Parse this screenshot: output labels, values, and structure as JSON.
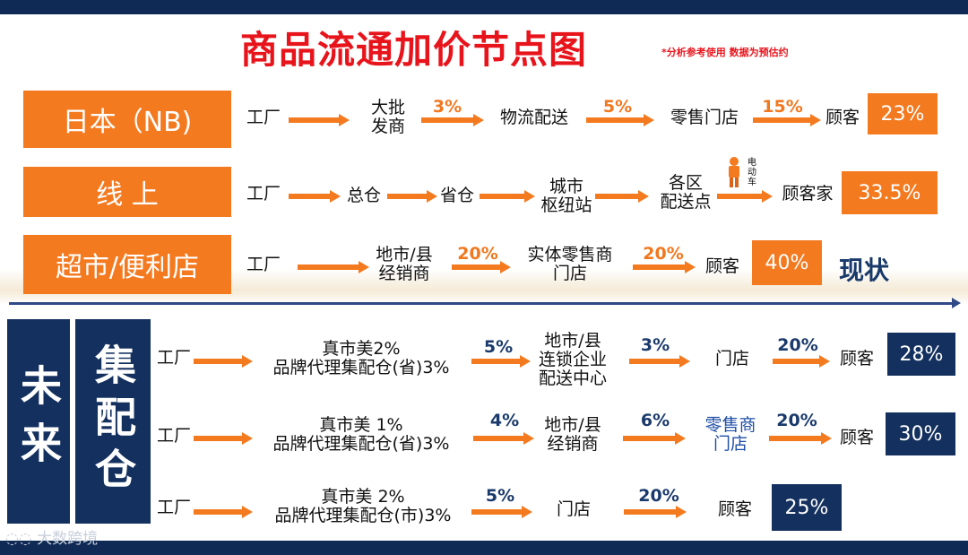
{
  "title": "商品流通加价节点图",
  "note": "*分析参考使用  数据为预估约",
  "status_label": "现状",
  "watermark": "大数跨境",
  "courier_label": "电动车",
  "colors": {
    "orange": "#f47a20",
    "navy": "#14305e",
    "red": "#e8141c"
  },
  "current": [
    {
      "label": "日本（NB)",
      "nodes": [
        "工厂",
        "大批\n发商",
        "物流配送",
        "零售门店",
        "顾客"
      ],
      "markups": [
        "",
        "3%",
        "5%",
        "15%"
      ],
      "total": "23%"
    },
    {
      "label": "线  上",
      "nodes": [
        "工厂",
        "总仓",
        "省仓",
        "城市\n枢纽站",
        "各区\n配送点",
        "顾客家"
      ],
      "markups": [
        "",
        "",
        "",
        "",
        ""
      ],
      "total": "33.5%"
    },
    {
      "label": "超市/便利店",
      "nodes": [
        "工厂",
        "地市/县\n经销商",
        "实体零售商\n门店",
        "顾客"
      ],
      "markups": [
        "",
        "20%",
        "20%"
      ],
      "total": "40%"
    }
  ],
  "future": {
    "side_label_1": "未来",
    "side_label_2": "集配仓",
    "rows": [
      {
        "nodes": [
          "工厂",
          "真市美2%\n品牌代理集配仓(省)3%",
          "地市/县\n连锁企业\n配送中心",
          "门店",
          "顾客"
        ],
        "markups": [
          "",
          "5%",
          "3%",
          "20%"
        ],
        "total": "28%"
      },
      {
        "nodes": [
          "工厂",
          "真市美  1%\n品牌代理集配仓(省)3%",
          "地市/县\n经销商",
          "零售商\n门店",
          "顾客"
        ],
        "markups": [
          "",
          "4%",
          "6%",
          "20%"
        ],
        "total": "30%"
      },
      {
        "nodes": [
          "工厂",
          "真市美  2%\n品牌代理集配仓(市)3%",
          "门店",
          "顾客"
        ],
        "markups": [
          "",
          "5%",
          "20%"
        ],
        "total": "25%"
      }
    ]
  }
}
